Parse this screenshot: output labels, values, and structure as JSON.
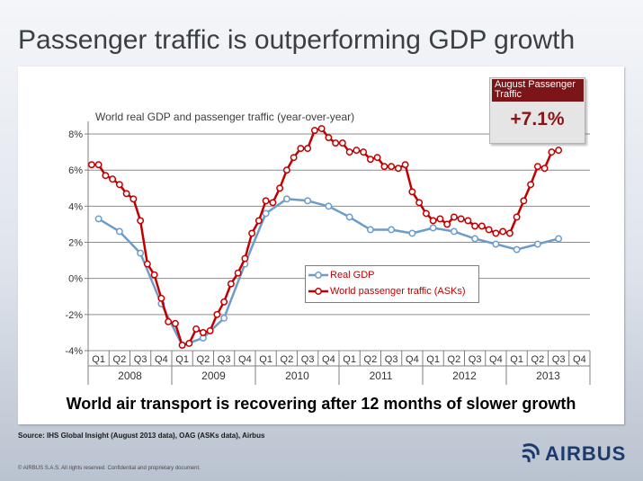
{
  "slide": {
    "title": "Passenger traffic is outperforming GDP growth",
    "source": "Source: IHS Global Insight (August 2013 data), OAG (ASKs data), Airbus",
    "copyright": "© AIRBUS S.A.S. All rights reserved. Confidential and proprietary document.",
    "logo_text": "AIRBUS",
    "logo_icon": "airbus-swirl-icon"
  },
  "callout": {
    "label": "August Passenger Traffic",
    "value": "+7.1%"
  },
  "colors": {
    "gdp": "#6d9cc9",
    "traffic": "#c00000",
    "callout_red": "#7b1517"
  },
  "chart_data": {
    "type": "line",
    "title": "World real GDP and passenger traffic (year-over-year)",
    "caption": "World air transport is recovering after 12 months of slower growth",
    "y_ticks": [
      "-4%",
      "-2%",
      "0%",
      "2%",
      "4%",
      "6%",
      "8%"
    ],
    "ylim": [
      -4,
      8.5
    ],
    "x_units": "months since Jan 2008",
    "xlim": [
      0,
      72
    ],
    "quarter_labels": [
      "Q1",
      "Q2",
      "Q3",
      "Q4",
      "Q1",
      "Q2",
      "Q3",
      "Q4",
      "Q1",
      "Q2",
      "Q3",
      "Q4",
      "Q1",
      "Q2",
      "Q3",
      "Q4",
      "Q1",
      "Q2",
      "Q3",
      "Q4",
      "Q1",
      "Q2",
      "Q3",
      "Q4"
    ],
    "year_labels": [
      "2008",
      "2009",
      "2010",
      "2011",
      "2012",
      "2013"
    ],
    "grid": "horizontal",
    "legend_position": "center",
    "series": [
      {
        "name": "Real GDP",
        "x": [
          1.5,
          4.5,
          7.5,
          10.5,
          13.5,
          16.5,
          19.5,
          22.5,
          25.5,
          28.5,
          31.5,
          34.5,
          37.5,
          40.5,
          43.5,
          46.5,
          49.5,
          52.5,
          55.5,
          58.5,
          61.5,
          64.5,
          67.5
        ],
        "values": [
          3.3,
          2.6,
          1.4,
          -1.4,
          -3.7,
          -3.3,
          -2.2,
          0.8,
          3.6,
          4.4,
          4.3,
          4.0,
          3.4,
          2.7,
          2.7,
          2.5,
          2.8,
          2.6,
          2.2,
          1.9,
          1.6,
          1.9,
          2.2
        ]
      },
      {
        "name": "World passenger traffic (ASKs)",
        "x": [
          0.5,
          1.5,
          2.5,
          3.5,
          4.5,
          5.5,
          6.5,
          7.5,
          8.5,
          9.5,
          10.5,
          11.5,
          12.5,
          13.5,
          14.5,
          15.5,
          16.5,
          17.5,
          18.5,
          19.5,
          20.5,
          21.5,
          22.5,
          23.5,
          24.5,
          25.5,
          26.5,
          27.5,
          28.5,
          29.5,
          30.5,
          31.5,
          32.5,
          33.5,
          34.5,
          35.5,
          36.5,
          37.5,
          38.5,
          39.5,
          40.5,
          41.5,
          42.5,
          43.5,
          44.5,
          45.5,
          46.5,
          47.5,
          48.5,
          49.5,
          50.5,
          51.5,
          52.5,
          53.5,
          54.5,
          55.5,
          56.5,
          57.5,
          58.5,
          59.5,
          60.5,
          61.5,
          62.5,
          63.5,
          64.5,
          65.5,
          66.5,
          67.5
        ],
        "values": [
          6.3,
          6.3,
          5.7,
          5.5,
          5.2,
          4.7,
          4.4,
          3.2,
          0.8,
          0.2,
          -1.1,
          -2.4,
          -2.5,
          -3.7,
          -3.6,
          -2.8,
          -3.0,
          -2.9,
          -2.0,
          -1.3,
          -0.3,
          0.3,
          1.1,
          2.5,
          3.2,
          4.3,
          4.2,
          5.0,
          6.0,
          6.7,
          7.2,
          7.2,
          8.2,
          8.3,
          7.8,
          7.5,
          7.5,
          7.0,
          7.1,
          7.0,
          6.6,
          6.7,
          6.2,
          6.2,
          6.1,
          6.3,
          4.8,
          4.2,
          3.6,
          3.2,
          3.3,
          3.0,
          3.4,
          3.3,
          3.2,
          2.9,
          2.9,
          2.7,
          2.5,
          2.6,
          2.5,
          3.4,
          4.3,
          5.2,
          6.2,
          6.1,
          7.0,
          7.1
        ]
      }
    ]
  }
}
